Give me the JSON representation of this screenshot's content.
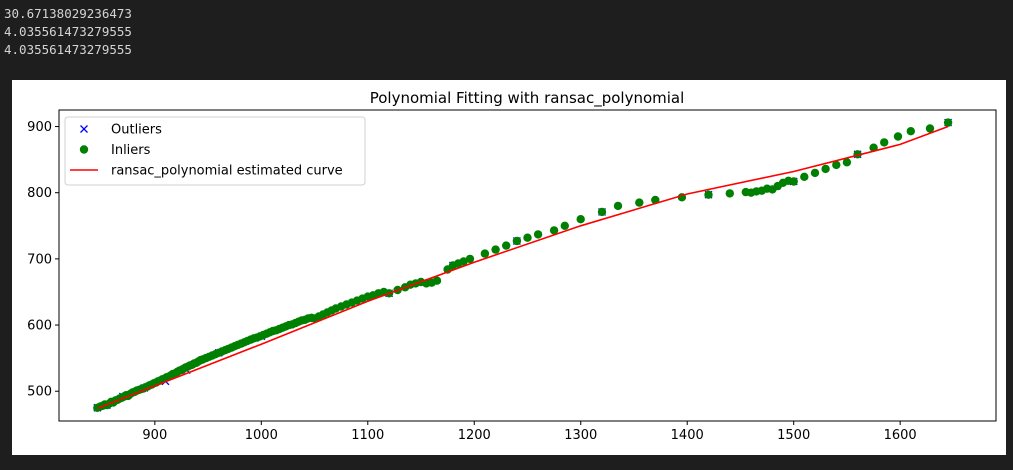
{
  "console_output": [
    "30.67138029236473",
    "4.035561473279555",
    "4.035561473279555"
  ],
  "chart_data": {
    "type": "scatter",
    "title": "Polynomial Fitting with ransac_polynomial",
    "xlabel": "",
    "ylabel": "",
    "xlim": [
      810,
      1690
    ],
    "ylim": [
      455,
      925
    ],
    "xticks": [
      900,
      1000,
      1100,
      1200,
      1300,
      1400,
      1500,
      1600
    ],
    "yticks": [
      500,
      600,
      700,
      800,
      900
    ],
    "legend_placement": "upper-left",
    "grid": false,
    "legend": [
      {
        "label": "Outliers",
        "marker": "x",
        "color": "#0000ff"
      },
      {
        "label": "Inliers",
        "marker": "o",
        "color": "#008000"
      },
      {
        "label": "ransac_polynomial estimated curve",
        "marker": "line",
        "color": "#ff0000"
      }
    ],
    "series": [
      {
        "name": "Outliers",
        "marker": "x",
        "color": "#0000ff",
        "points": [
          [
            846,
            475
          ],
          [
            855,
            479
          ],
          [
            870,
            492
          ],
          [
            890,
            505
          ],
          [
            910,
            515
          ],
          [
            930,
            532
          ],
          [
            960,
            558
          ],
          [
            1000,
            583
          ],
          [
            1050,
            610
          ],
          [
            1120,
            648
          ],
          [
            1180,
            690
          ],
          [
            1240,
            727
          ],
          [
            1320,
            771
          ],
          [
            1420,
            797
          ],
          [
            1500,
            817
          ],
          [
            1560,
            858
          ],
          [
            1645,
            906
          ]
        ]
      },
      {
        "name": "Inliers",
        "marker": "o",
        "color": "#008000",
        "points": [
          [
            846,
            475
          ],
          [
            849,
            477
          ],
          [
            851,
            478
          ],
          [
            853,
            480
          ],
          [
            855,
            479
          ],
          [
            857,
            481
          ],
          [
            859,
            484
          ],
          [
            861,
            483
          ],
          [
            863,
            486
          ],
          [
            865,
            487
          ],
          [
            867,
            489
          ],
          [
            869,
            490
          ],
          [
            871,
            492
          ],
          [
            873,
            494
          ],
          [
            875,
            493
          ],
          [
            877,
            496
          ],
          [
            879,
            498
          ],
          [
            881,
            499
          ],
          [
            883,
            501
          ],
          [
            885,
            502
          ],
          [
            887,
            503
          ],
          [
            889,
            504
          ],
          [
            891,
            506
          ],
          [
            893,
            507
          ],
          [
            895,
            509
          ],
          [
            897,
            510
          ],
          [
            899,
            512
          ],
          [
            901,
            513
          ],
          [
            903,
            515
          ],
          [
            905,
            516
          ],
          [
            907,
            518
          ],
          [
            909,
            519
          ],
          [
            911,
            521
          ],
          [
            913,
            522
          ],
          [
            915,
            524
          ],
          [
            917,
            526
          ],
          [
            919,
            527
          ],
          [
            921,
            529
          ],
          [
            923,
            531
          ],
          [
            925,
            532
          ],
          [
            927,
            534
          ],
          [
            929,
            536
          ],
          [
            931,
            537
          ],
          [
            933,
            539
          ],
          [
            935,
            540
          ],
          [
            937,
            542
          ],
          [
            939,
            543
          ],
          [
            941,
            545
          ],
          [
            943,
            547
          ],
          [
            945,
            548
          ],
          [
            948,
            550
          ],
          [
            951,
            552
          ],
          [
            954,
            554
          ],
          [
            957,
            556
          ],
          [
            960,
            558
          ],
          [
            963,
            560
          ],
          [
            966,
            562
          ],
          [
            969,
            564
          ],
          [
            972,
            566
          ],
          [
            975,
            568
          ],
          [
            978,
            570
          ],
          [
            981,
            572
          ],
          [
            984,
            574
          ],
          [
            987,
            576
          ],
          [
            990,
            578
          ],
          [
            993,
            580
          ],
          [
            996,
            581
          ],
          [
            999,
            583
          ],
          [
            1002,
            585
          ],
          [
            1005,
            587
          ],
          [
            1008,
            589
          ],
          [
            1011,
            591
          ],
          [
            1014,
            592
          ],
          [
            1017,
            594
          ],
          [
            1020,
            596
          ],
          [
            1023,
            598
          ],
          [
            1026,
            600
          ],
          [
            1029,
            601
          ],
          [
            1032,
            603
          ],
          [
            1035,
            605
          ],
          [
            1038,
            607
          ],
          [
            1041,
            608
          ],
          [
            1044,
            610
          ],
          [
            1047,
            611
          ],
          [
            1050,
            610
          ],
          [
            1054,
            613
          ],
          [
            1058,
            616
          ],
          [
            1062,
            619
          ],
          [
            1066,
            622
          ],
          [
            1070,
            625
          ],
          [
            1075,
            628
          ],
          [
            1080,
            631
          ],
          [
            1085,
            634
          ],
          [
            1090,
            637
          ],
          [
            1095,
            640
          ],
          [
            1100,
            643
          ],
          [
            1105,
            645
          ],
          [
            1110,
            648
          ],
          [
            1115,
            650
          ],
          [
            1120,
            648
          ],
          [
            1128,
            653
          ],
          [
            1135,
            657
          ],
          [
            1140,
            661
          ],
          [
            1145,
            663
          ],
          [
            1150,
            665
          ],
          [
            1155,
            663
          ],
          [
            1160,
            664
          ],
          [
            1165,
            667
          ],
          [
            1175,
            684
          ],
          [
            1180,
            690
          ],
          [
            1185,
            693
          ],
          [
            1190,
            696
          ],
          [
            1196,
            700
          ],
          [
            1210,
            708
          ],
          [
            1220,
            714
          ],
          [
            1230,
            720
          ],
          [
            1240,
            727
          ],
          [
            1250,
            732
          ],
          [
            1260,
            737
          ],
          [
            1275,
            743
          ],
          [
            1285,
            750
          ],
          [
            1300,
            760
          ],
          [
            1320,
            771
          ],
          [
            1335,
            780
          ],
          [
            1355,
            785
          ],
          [
            1370,
            789
          ],
          [
            1395,
            793
          ],
          [
            1420,
            797
          ],
          [
            1440,
            799
          ],
          [
            1455,
            801
          ],
          [
            1460,
            800
          ],
          [
            1465,
            802
          ],
          [
            1470,
            803
          ],
          [
            1475,
            806
          ],
          [
            1480,
            805
          ],
          [
            1485,
            810
          ],
          [
            1490,
            815
          ],
          [
            1495,
            818
          ],
          [
            1500,
            817
          ],
          [
            1510,
            824
          ],
          [
            1520,
            830
          ],
          [
            1530,
            836
          ],
          [
            1540,
            842
          ],
          [
            1550,
            846
          ],
          [
            1560,
            858
          ],
          [
            1575,
            868
          ],
          [
            1585,
            876
          ],
          [
            1598,
            885
          ],
          [
            1610,
            893
          ],
          [
            1628,
            897
          ],
          [
            1645,
            906
          ]
        ]
      },
      {
        "name": "ransac_polynomial estimated curve",
        "marker": "line",
        "color": "#ff0000",
        "points": [
          [
            846,
            474
          ],
          [
            900,
            508
          ],
          [
            1000,
            571
          ],
          [
            1100,
            636
          ],
          [
            1200,
            695
          ],
          [
            1300,
            750
          ],
          [
            1400,
            798
          ],
          [
            1500,
            832
          ],
          [
            1600,
            873
          ],
          [
            1645,
            900
          ]
        ]
      }
    ]
  }
}
